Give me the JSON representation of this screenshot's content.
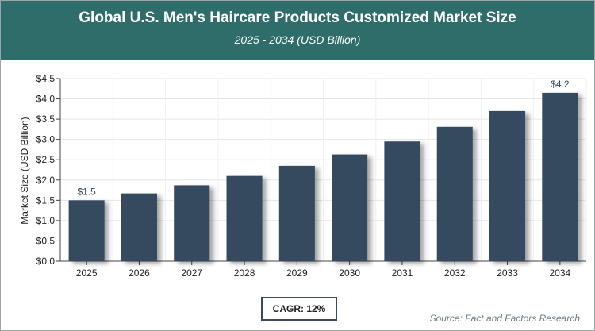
{
  "header": {
    "title": "Global U.S. Men's Haircare Products Customized Market Size",
    "subtitle": "2025 - 2034 (USD Billion)"
  },
  "chart_data": {
    "type": "bar",
    "categories": [
      "2025",
      "2026",
      "2027",
      "2028",
      "2029",
      "2030",
      "2031",
      "2032",
      "2033",
      "2034"
    ],
    "values": [
      1.5,
      1.67,
      1.87,
      2.1,
      2.35,
      2.63,
      2.95,
      3.31,
      3.7,
      4.15
    ],
    "data_labels": {
      "0": "$1.5",
      "9": "$4.2"
    },
    "ylabel": "Market Size (USD Billion)",
    "xlabel": "",
    "ylim": [
      0,
      4.5
    ],
    "yticks": [
      0,
      0.5,
      1.0,
      1.5,
      2.0,
      2.5,
      3.0,
      3.5,
      4.0,
      4.5
    ],
    "ytick_labels": [
      "$0.0",
      "$0.5",
      "$1.0",
      "$1.5",
      "$2.0",
      "$2.5",
      "$3.0",
      "$3.5",
      "$4.0",
      "$4.5"
    ],
    "grid": true,
    "bar_color": "#34495e"
  },
  "footer": {
    "cagr": "CAGR: 12%",
    "source": "Source: Fact and Factors Research"
  }
}
